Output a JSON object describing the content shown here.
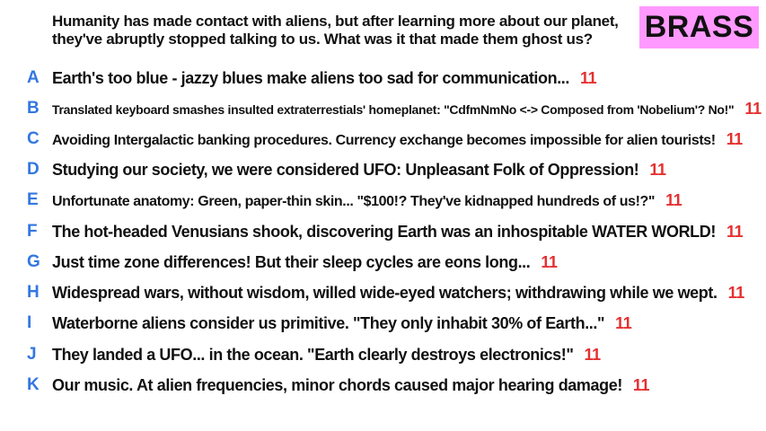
{
  "prompt": {
    "line1": "Humanity has made contact with aliens, but after learning more about our planet,",
    "line2": "they've abruptly stopped talking to us. What was it that made them ghost us?"
  },
  "team": {
    "name": "BRASS",
    "color": "#ff99ff"
  },
  "colors": {
    "letter": "#3377e0",
    "score": "#e53030"
  },
  "answers": [
    {
      "letter": "A",
      "text": "Earth's too blue - jazzy blues make aliens too sad for communication...",
      "score": "11"
    },
    {
      "letter": "B",
      "text": "Translated keyboard smashes insulted extraterrestials' homeplanet: \"CdfmNmNo <-> Composed from 'Nobelium'? No!\"",
      "score": "11"
    },
    {
      "letter": "C",
      "text": "Avoiding Intergalactic banking procedures. Currency exchange becomes impossible for alien tourists!",
      "score": "11"
    },
    {
      "letter": "D",
      "text": "Studying our society, we were considered UFO: Unpleasant Folk of Oppression!",
      "score": "11"
    },
    {
      "letter": "E",
      "text": "Unfortunate anatomy: Green, paper-thin skin... \"$100!? They've kidnapped hundreds of us!?\"",
      "score": "11"
    },
    {
      "letter": "F",
      "text": "The hot-headed Venusians shook, discovering Earth was an inhospitable WATER WORLD!",
      "score": "11"
    },
    {
      "letter": "G",
      "text": "Just time zone differences! But their sleep cycles are eons long...",
      "score": "11"
    },
    {
      "letter": "H",
      "text": "Widespread wars, without wisdom, willed wide-eyed watchers; withdrawing while we wept.",
      "score": "11"
    },
    {
      "letter": "I",
      "text": "Waterborne aliens consider us primitive. \"They only inhabit 30% of Earth...\"",
      "score": "11"
    },
    {
      "letter": "J",
      "text": "They landed a UFO... in the ocean. \"Earth clearly destroys electronics!\"",
      "score": "11"
    },
    {
      "letter": "K",
      "text": "Our music. At alien frequencies, minor chords caused major hearing damage!",
      "score": "11"
    }
  ]
}
